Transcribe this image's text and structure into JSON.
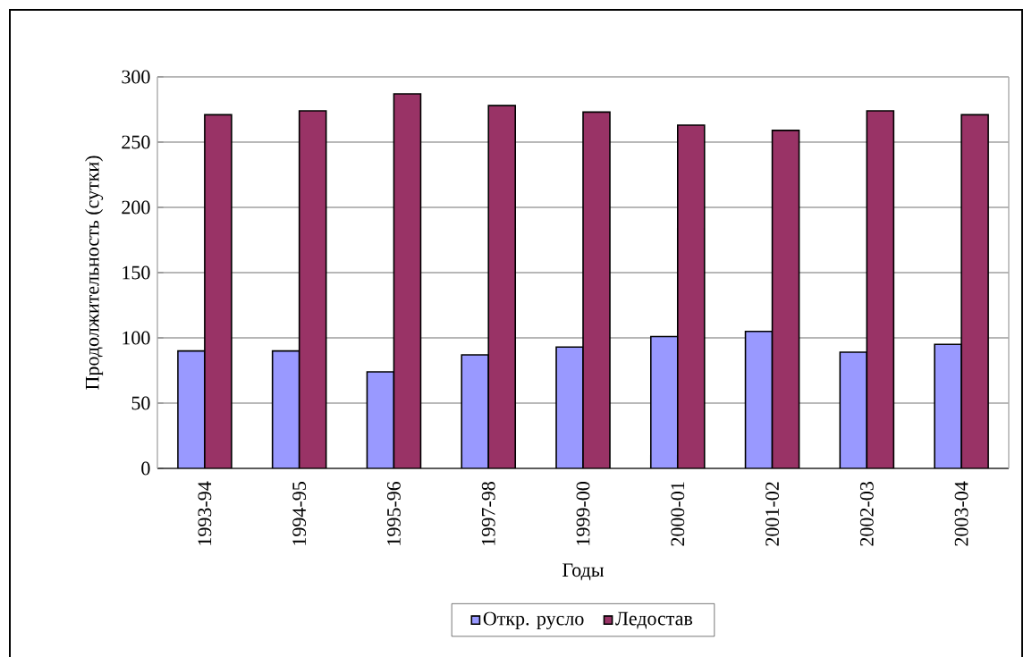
{
  "chart_data": {
    "type": "bar",
    "xlabel": "Годы",
    "ylabel": "Продолжительность (сутки)",
    "categories": [
      "1993-94",
      "1994-95",
      "1995-96",
      "1997-98",
      "1999-00",
      "2000-01",
      "2001-02",
      "2002-03",
      "2003-04"
    ],
    "series": [
      {
        "name": "Откр. русло",
        "color": "#9999ff",
        "values": [
          90,
          90,
          74,
          87,
          93,
          101,
          105,
          89,
          95
        ]
      },
      {
        "name": "Ледостав",
        "color": "#993366",
        "values": [
          271,
          274,
          287,
          278,
          273,
          263,
          259,
          274,
          271
        ]
      }
    ],
    "ylim": [
      0,
      300
    ],
    "yticks": [
      0,
      50,
      100,
      150,
      200,
      250,
      300
    ],
    "grid": "y",
    "legend": "bottom"
  }
}
